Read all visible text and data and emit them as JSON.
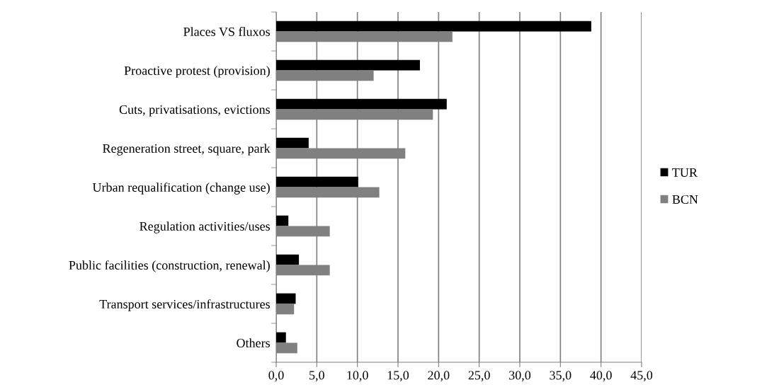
{
  "chart_data": {
    "type": "bar",
    "orientation": "horizontal",
    "categories": [
      "Places VS fluxos",
      "Proactive protest (provision)",
      "Cuts, privatisations, evictions",
      "Regeneration street, square, park",
      "Urban requalification (change use)",
      "Regulation activities/uses",
      "Public facilities (construction, renewal)",
      "Transport services/infrastructures",
      "Others"
    ],
    "series": [
      {
        "name": "TUR",
        "color": "#000000",
        "values": [
          38.8,
          17.7,
          21.0,
          4.0,
          10.1,
          1.5,
          2.8,
          2.4,
          1.2
        ]
      },
      {
        "name": "BCN",
        "color": "#808080",
        "values": [
          21.7,
          12.0,
          19.3,
          15.9,
          12.7,
          6.6,
          6.6,
          2.2,
          2.6
        ]
      }
    ],
    "xlim": [
      0,
      45
    ],
    "xticks": [
      {
        "value": 0,
        "label": "0,0"
      },
      {
        "value": 5,
        "label": "5,0"
      },
      {
        "value": 10,
        "label": "10,0"
      },
      {
        "value": 15,
        "label": "15,0"
      },
      {
        "value": 20,
        "label": "20,0"
      },
      {
        "value": 25,
        "label": "25,0"
      },
      {
        "value": 30,
        "label": "30,0"
      },
      {
        "value": 35,
        "label": "35,0"
      },
      {
        "value": 40,
        "label": "40,0"
      },
      {
        "value": 45,
        "label": "45,0"
      }
    ],
    "grid": "x",
    "legend": "right"
  }
}
